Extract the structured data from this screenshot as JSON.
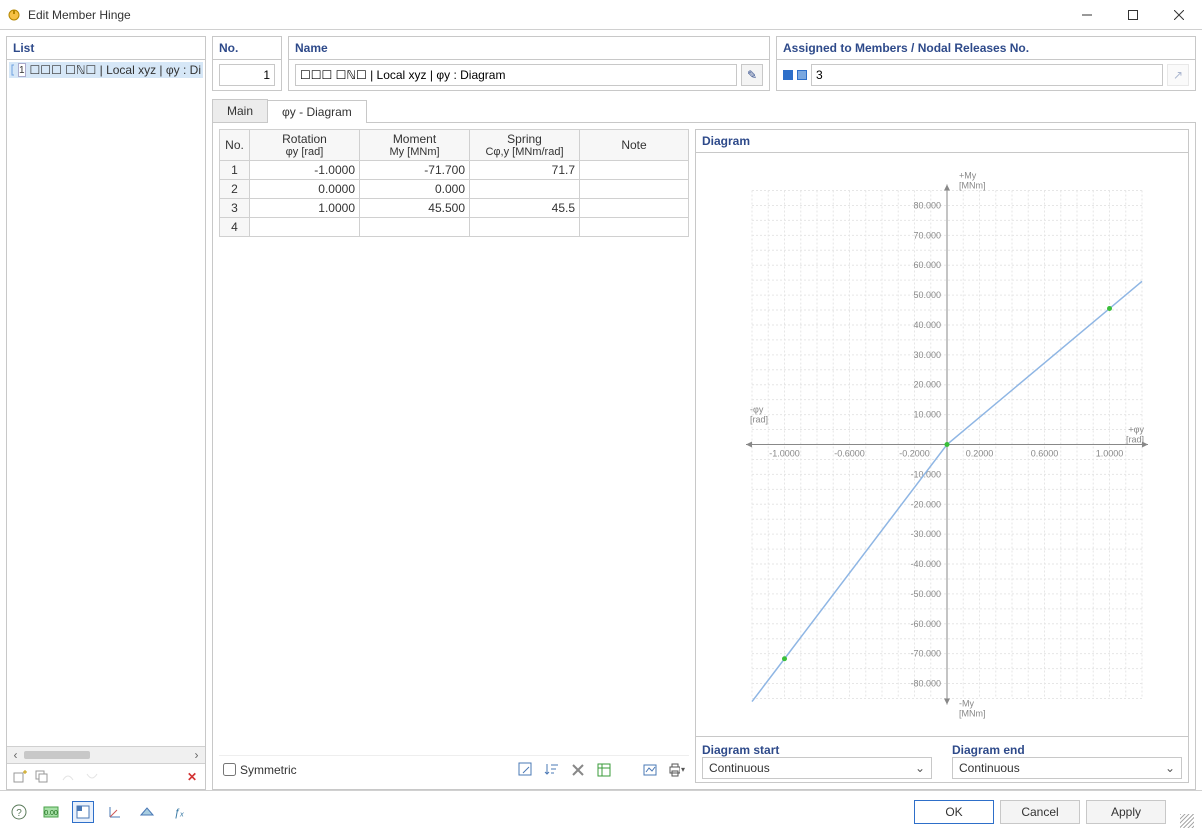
{
  "window": {
    "title": "Edit Member Hinge"
  },
  "left": {
    "header": "List",
    "items": [
      {
        "num": "1",
        "label": "☐☐☐ ☐ℕ☐ | Local xyz | φy : Di"
      }
    ]
  },
  "fields": {
    "no_label": "No.",
    "no_value": "1",
    "name_label": "Name",
    "name_value": "☐☐☐ ☐ℕ☐ | Local xyz | φy : Diagram",
    "assigned_label": "Assigned to Members / Nodal Releases No.",
    "assigned_value": "3"
  },
  "tabs": {
    "main": "Main",
    "active": "φy - Diagram"
  },
  "table": {
    "headers": {
      "no": "No.",
      "rotation": "Rotation",
      "rotation_sub": "φy [rad]",
      "moment": "Moment",
      "moment_sub": "My [MNm]",
      "spring": "Spring",
      "spring_sub": "Cφ,y [MNm/rad]",
      "note": "Note"
    },
    "rows": [
      {
        "n": "1",
        "rot": "-1.0000",
        "mom": "-71.700",
        "spr": "71.7",
        "note": ""
      },
      {
        "n": "2",
        "rot": "0.0000",
        "mom": "0.000",
        "spr": "",
        "note": ""
      },
      {
        "n": "3",
        "rot": "1.0000",
        "mom": "45.500",
        "spr": "45.5",
        "note": ""
      },
      {
        "n": "4",
        "rot": "",
        "mom": "",
        "spr": "",
        "note": ""
      }
    ],
    "symmetric_label": "Symmetric"
  },
  "chart": {
    "title": "Diagram",
    "type": "line",
    "x_axis_pos_label": "+φy",
    "x_axis_pos_unit": "[rad]",
    "x_axis_neg_label": "-φy",
    "x_axis_neg_unit": "[rad]",
    "y_axis_pos_label": "+My",
    "y_axis_pos_unit": "[MNm]",
    "y_axis_neg_label": "-My",
    "y_axis_neg_unit": "[MNm]",
    "xlim": [
      -1.2,
      1.2
    ],
    "ylim": [
      -85,
      85
    ],
    "xticks": [
      "-1.0000",
      "-0.6000",
      "-0.2000",
      "0.2000",
      "0.6000",
      "1.0000"
    ],
    "yticks": [
      "80.000",
      "70.000",
      "60.000",
      "50.000",
      "40.000",
      "30.000",
      "20.000",
      "10.000",
      "-10.000",
      "-20.000",
      "-30.000",
      "-40.000",
      "-50.000",
      "-60.000",
      "-70.000",
      "-80.000"
    ],
    "data_points": [
      {
        "x": -1.0,
        "y": -71.7
      },
      {
        "x": 0.0,
        "y": 0.0
      },
      {
        "x": 1.0,
        "y": 45.5
      }
    ],
    "line_color": "#8fb6e4",
    "line_width": 1.5,
    "point_color": "#3abf3a",
    "point_radius": 2.5,
    "axis_color": "#888888",
    "axis_label_color": "#888888",
    "tick_font_size": 9,
    "grid_color": "#e6e6e6",
    "grid_dash": "2,2",
    "background_color": "#ffffff"
  },
  "chart_opts": {
    "start_label": "Diagram start",
    "start_value": "Continuous",
    "end_label": "Diagram end",
    "end_value": "Continuous"
  },
  "icons": {
    "edit": "✎",
    "pick": "↗"
  },
  "buttons": {
    "ok": "OK",
    "cancel": "Cancel",
    "apply": "Apply"
  }
}
